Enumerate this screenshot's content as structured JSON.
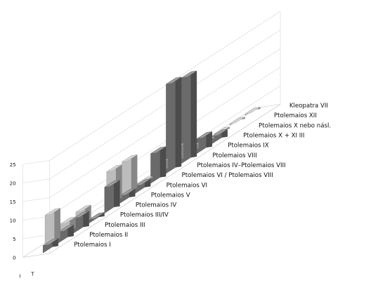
{
  "chart_data": {
    "type": "bar",
    "title": "",
    "xlabel": "",
    "ylabel": "",
    "ylim": [
      0,
      25
    ],
    "yticks": [
      0,
      5,
      10,
      15,
      20,
      25
    ],
    "grid": true,
    "legend": "none",
    "categories": [
      "Ptolemaios I",
      "Ptolemaios II",
      "Ptolemaios III",
      "Ptolemaios III/IV",
      "Ptolemaios IV",
      "Ptolemaios V",
      "Ptolemaios VI",
      "Ptolemaios VI / Ptolemaios VIII",
      "Ptolemaios IV–Ptolemaios VIII",
      "Ptolemaios VIII",
      "Ptolemaios IX",
      "Ptolemaios X + XI III",
      "Ptolemaios X nebo násl.",
      "Ptolemaios XII",
      "Kleopatra VII"
    ],
    "series_labels": [
      "I",
      "T"
    ],
    "series": [
      {
        "values": [
          0,
          8,
          3,
          3.5,
          0,
          9,
          9,
          0.5,
          2.5,
          4,
          1.5,
          0.5,
          0.5,
          0.5,
          0.5
        ],
        "color": "#bcbcbc"
      },
      {
        "values": [
          2,
          3,
          4,
          1,
          7,
          2,
          2,
          8,
          24,
          23,
          4,
          2,
          0,
          0,
          0
        ],
        "color": "#6a6a6a"
      }
    ]
  }
}
